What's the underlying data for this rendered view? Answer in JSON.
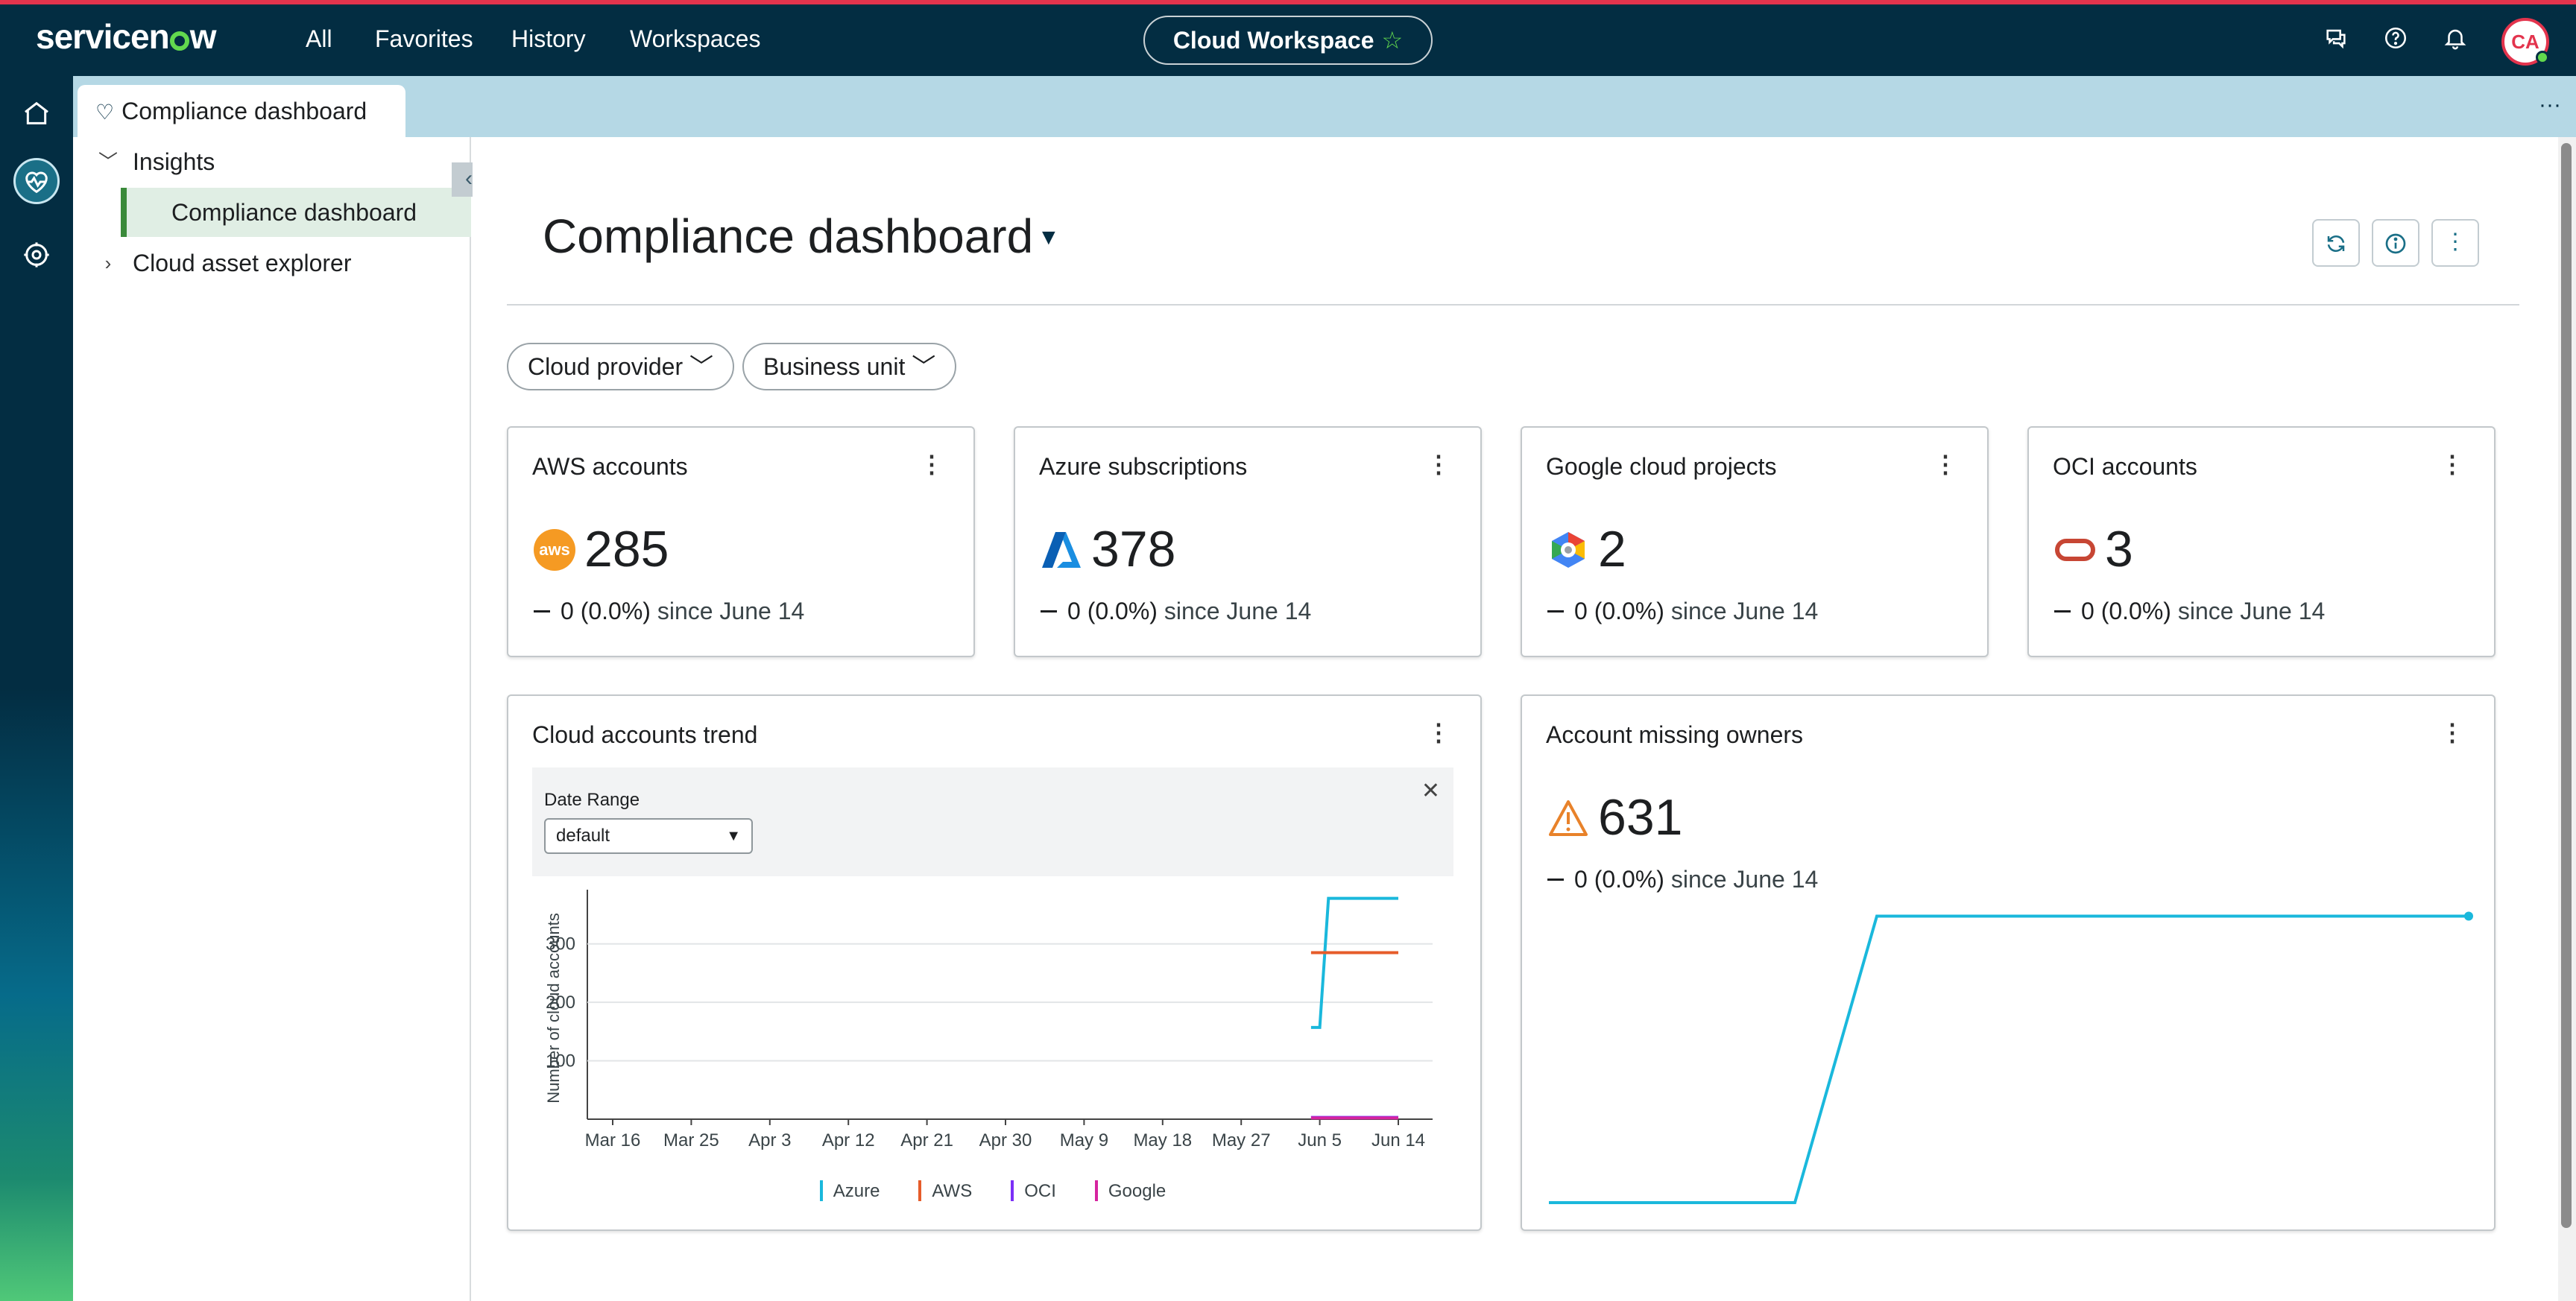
{
  "topbar": {
    "logo": "servicenow",
    "nav": [
      "All",
      "Favorites",
      "History",
      "Workspaces"
    ],
    "workspace": "Cloud Workspace",
    "avatar_initials": "CA"
  },
  "tabs": [
    {
      "label": "Compliance dashboard"
    }
  ],
  "sidenav": {
    "items": [
      {
        "label": "Insights",
        "expanded": true
      },
      {
        "label": "Compliance dashboard",
        "selected": true
      },
      {
        "label": "Cloud asset explorer",
        "expanded": false
      }
    ]
  },
  "page": {
    "title": "Compliance dashboard"
  },
  "filters": [
    "Cloud provider",
    "Business unit"
  ],
  "kpis": [
    {
      "title": "AWS accounts",
      "value": "285",
      "change": "0 (0.0%)",
      "since": "since June 14",
      "icon": "aws-icon"
    },
    {
      "title": "Azure subscriptions",
      "value": "378",
      "change": "0 (0.0%)",
      "since": "since June 14",
      "icon": "azure-icon"
    },
    {
      "title": "Google cloud projects",
      "value": "2",
      "change": "0 (0.0%)",
      "since": "since June 14",
      "icon": "google-cloud-icon"
    },
    {
      "title": "OCI accounts",
      "value": "3",
      "change": "0 (0.0%)",
      "since": "since June 14",
      "icon": "oracle-icon"
    }
  ],
  "trend": {
    "title": "Cloud accounts trend",
    "date_range_label": "Date Range",
    "date_range_value": "default"
  },
  "missing": {
    "title": "Account missing owners",
    "value": "631",
    "change": "0 (0.0%)",
    "since": "since June 14"
  },
  "chart_data": [
    {
      "type": "line",
      "ylabel": "Number of cloud accounts",
      "ylim": [
        0,
        380
      ],
      "yticks": [
        "100",
        "200",
        "300"
      ],
      "x_ticks": [
        "Mar 16",
        "Mar 25",
        "Apr 3",
        "Apr 12",
        "Apr 21",
        "Apr 30",
        "May 9",
        "May 18",
        "May 27",
        "Jun 5",
        "Jun 14"
      ],
      "series": [
        {
          "name": "Azure",
          "color": "#1ab8dc",
          "points": [
            [
              "Jun 4",
              157
            ],
            [
              "Jun 5",
              157
            ],
            [
              "Jun 6",
              378
            ],
            [
              "Jun 14",
              378
            ]
          ]
        },
        {
          "name": "AWS",
          "color": "#e65c2a",
          "points": [
            [
              "Jun 4",
              285
            ],
            [
              "Jun 14",
              285
            ]
          ]
        },
        {
          "name": "OCI",
          "color": "#7b2ff7",
          "points": [
            [
              "Jun 4",
              3
            ],
            [
              "Jun 14",
              3
            ]
          ]
        },
        {
          "name": "Google",
          "color": "#d6249f",
          "points": [
            [
              "Jun 4",
              2
            ],
            [
              "Jun 14",
              2
            ]
          ]
        }
      ],
      "grid": true,
      "legend": "bottom"
    },
    {
      "type": "line",
      "series": [
        {
          "color": "#1ab8dc",
          "values": [
            0,
            0,
            0,
            0,
            631,
            631,
            631,
            631,
            631,
            631,
            631,
            631
          ]
        }
      ],
      "ylim": [
        0,
        800
      ],
      "grid": false
    }
  ]
}
